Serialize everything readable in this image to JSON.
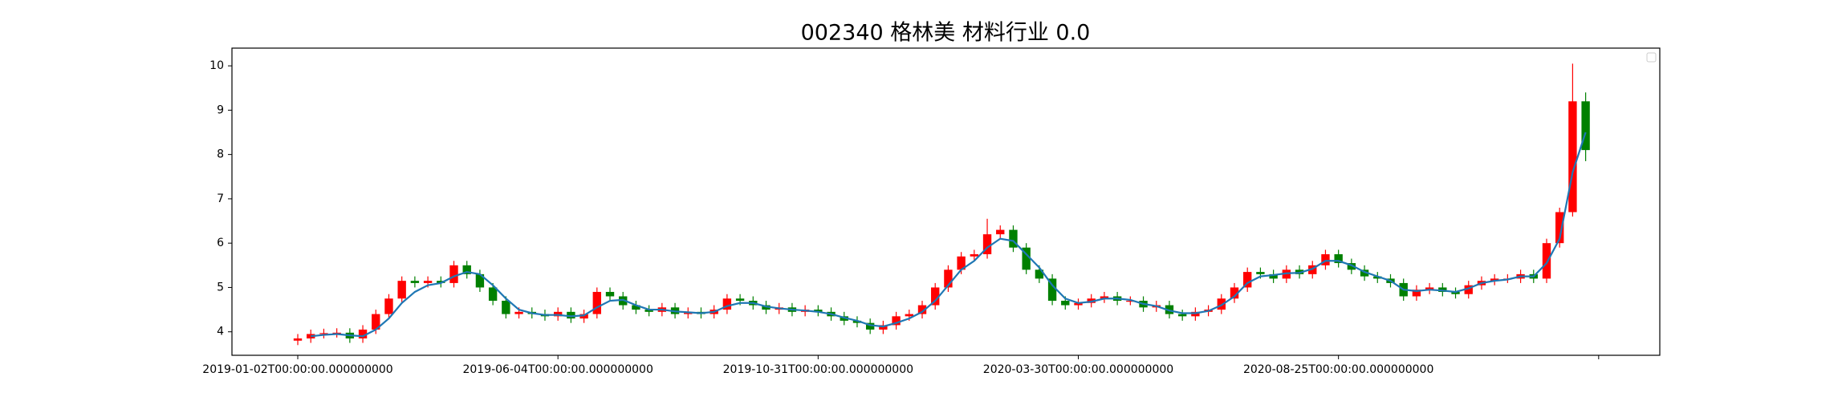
{
  "chart_data": {
    "type": "candlestick",
    "title": "002340 格林美 材料行业 0.0",
    "x": [
      0,
      5,
      10,
      15,
      20,
      25,
      30,
      35,
      40,
      45,
      50,
      55,
      60,
      65,
      70,
      75,
      80,
      85,
      90,
      95,
      100,
      105,
      110,
      115,
      120,
      125,
      130,
      135,
      140,
      145,
      150,
      155,
      160,
      165,
      170,
      175,
      180,
      185,
      190,
      195,
      200,
      205,
      210,
      215,
      220,
      225,
      230,
      235,
      240,
      245,
      250,
      255,
      260,
      265,
      270,
      275,
      280,
      285,
      290,
      295,
      300,
      305,
      310,
      315,
      320,
      325,
      330,
      335,
      340,
      345,
      350,
      355,
      360,
      365,
      370,
      375,
      380,
      385,
      390,
      395,
      400,
      405,
      410,
      415,
      420,
      425,
      430,
      435,
      440,
      445,
      450,
      455,
      460,
      465,
      470,
      475,
      480,
      485,
      490,
      495
    ],
    "opens": [
      3.8,
      3.85,
      3.95,
      3.97,
      3.98,
      3.85,
      4.05,
      4.4,
      4.75,
      5.15,
      5.1,
      5.15,
      5.1,
      5.5,
      5.3,
      5.0,
      4.7,
      4.4,
      4.45,
      4.4,
      4.35,
      4.45,
      4.3,
      4.4,
      4.9,
      4.8,
      4.6,
      4.5,
      4.45,
      4.55,
      4.4,
      4.45,
      4.4,
      4.5,
      4.75,
      4.7,
      4.6,
      4.5,
      4.55,
      4.45,
      4.5,
      4.45,
      4.35,
      4.25,
      4.2,
      4.05,
      4.15,
      4.35,
      4.4,
      4.6,
      5.0,
      5.4,
      5.7,
      5.75,
      6.2,
      6.3,
      5.9,
      5.4,
      5.2,
      4.7,
      4.6,
      4.65,
      4.75,
      4.8,
      4.7,
      4.7,
      4.55,
      4.6,
      4.4,
      4.35,
      4.45,
      4.5,
      4.75,
      5.0,
      5.35,
      5.3,
      5.2,
      5.4,
      5.3,
      5.5,
      5.75,
      5.55,
      5.4,
      5.25,
      5.2,
      5.1,
      4.8,
      4.95,
      5.0,
      4.9,
      4.85,
      5.05,
      5.15,
      5.2,
      5.2,
      5.3,
      5.2,
      6.0,
      6.7,
      9.2
    ],
    "highs": [
      3.95,
      4.05,
      4.07,
      4.08,
      4.08,
      4.15,
      4.5,
      4.85,
      5.25,
      5.25,
      5.25,
      5.25,
      5.6,
      5.6,
      5.4,
      5.1,
      4.8,
      4.55,
      4.55,
      4.5,
      4.55,
      4.55,
      4.5,
      5.0,
      5.0,
      4.9,
      4.7,
      4.6,
      4.65,
      4.65,
      4.55,
      4.55,
      4.6,
      4.85,
      4.85,
      4.8,
      4.7,
      4.65,
      4.65,
      4.6,
      4.6,
      4.55,
      4.45,
      4.35,
      4.3,
      4.25,
      4.45,
      4.5,
      4.7,
      5.1,
      5.5,
      5.8,
      5.85,
      6.55,
      6.4,
      6.4,
      6.0,
      5.5,
      5.3,
      4.8,
      4.75,
      4.85,
      4.9,
      4.9,
      4.8,
      4.8,
      4.7,
      4.7,
      4.5,
      4.55,
      4.6,
      4.85,
      5.1,
      5.45,
      5.45,
      5.4,
      5.5,
      5.5,
      5.6,
      5.85,
      5.85,
      5.65,
      5.5,
      5.35,
      5.3,
      5.2,
      5.05,
      5.1,
      5.1,
      5.0,
      5.15,
      5.25,
      5.3,
      5.3,
      5.4,
      5.4,
      6.1,
      6.8,
      10.05,
      9.4
    ],
    "lows": [
      3.7,
      3.75,
      3.85,
      3.87,
      3.75,
      3.75,
      3.95,
      4.3,
      4.65,
      5.0,
      5.0,
      5.0,
      5.0,
      5.2,
      4.9,
      4.6,
      4.3,
      4.3,
      4.3,
      4.25,
      4.25,
      4.2,
      4.2,
      4.3,
      4.7,
      4.5,
      4.4,
      4.35,
      4.35,
      4.3,
      4.3,
      4.3,
      4.3,
      4.4,
      4.6,
      4.5,
      4.4,
      4.4,
      4.35,
      4.35,
      4.35,
      4.25,
      4.15,
      4.1,
      3.95,
      3.95,
      4.05,
      4.25,
      4.3,
      4.5,
      4.9,
      5.3,
      5.6,
      5.65,
      6.1,
      5.8,
      5.3,
      5.1,
      4.6,
      4.5,
      4.5,
      4.55,
      4.65,
      4.6,
      4.6,
      4.45,
      4.45,
      4.3,
      4.25,
      4.25,
      4.35,
      4.4,
      4.65,
      4.9,
      5.2,
      5.1,
      5.1,
      5.2,
      5.2,
      5.4,
      5.45,
      5.3,
      5.15,
      5.1,
      5.0,
      4.7,
      4.7,
      4.85,
      4.8,
      4.75,
      4.75,
      4.95,
      5.05,
      5.1,
      5.1,
      5.1,
      5.1,
      5.9,
      6.6,
      7.85
    ],
    "closes": [
      3.85,
      3.95,
      3.97,
      3.98,
      3.85,
      4.05,
      4.4,
      4.75,
      5.15,
      5.1,
      5.15,
      5.1,
      5.5,
      5.3,
      5.0,
      4.7,
      4.4,
      4.45,
      4.4,
      4.35,
      4.45,
      4.3,
      4.4,
      4.9,
      4.8,
      4.6,
      4.5,
      4.45,
      4.55,
      4.4,
      4.45,
      4.4,
      4.5,
      4.75,
      4.7,
      4.6,
      4.5,
      4.55,
      4.45,
      4.5,
      4.45,
      4.35,
      4.25,
      4.2,
      4.05,
      4.15,
      4.35,
      4.4,
      4.6,
      5.0,
      5.4,
      5.7,
      5.75,
      6.2,
      6.3,
      5.9,
      5.4,
      5.2,
      4.7,
      4.6,
      4.65,
      4.75,
      4.8,
      4.7,
      4.7,
      4.55,
      4.6,
      4.4,
      4.35,
      4.45,
      4.5,
      4.75,
      5.0,
      5.35,
      5.3,
      5.2,
      5.4,
      5.3,
      5.5,
      5.75,
      5.55,
      5.4,
      5.25,
      5.2,
      5.1,
      4.8,
      4.95,
      5.0,
      4.9,
      4.85,
      5.05,
      5.15,
      5.2,
      5.2,
      5.3,
      5.2,
      6.0,
      6.7,
      9.2,
      8.1
    ],
    "ma": {
      "color": "#1f77b4",
      "values": [
        null,
        3.9,
        3.93,
        3.95,
        3.92,
        3.9,
        4.05,
        4.3,
        4.65,
        4.9,
        5.05,
        5.1,
        5.25,
        5.35,
        5.3,
        5.05,
        4.75,
        4.5,
        4.42,
        4.38,
        4.38,
        4.35,
        4.37,
        4.55,
        4.7,
        4.72,
        4.6,
        4.5,
        4.5,
        4.46,
        4.44,
        4.42,
        4.45,
        4.58,
        4.65,
        4.65,
        4.57,
        4.53,
        4.5,
        4.48,
        4.45,
        4.4,
        4.32,
        4.25,
        4.15,
        4.12,
        4.2,
        4.3,
        4.45,
        4.7,
        5.05,
        5.4,
        5.6,
        5.9,
        6.1,
        6.05,
        5.75,
        5.45,
        5.05,
        4.75,
        4.65,
        4.68,
        4.75,
        4.75,
        4.72,
        4.63,
        4.58,
        4.48,
        4.42,
        4.42,
        4.47,
        4.6,
        4.8,
        5.1,
        5.25,
        5.28,
        5.32,
        5.33,
        5.42,
        5.6,
        5.6,
        5.5,
        5.35,
        5.25,
        5.15,
        4.95,
        4.92,
        4.95,
        4.93,
        4.9,
        4.98,
        5.1,
        5.15,
        5.18,
        5.25,
        5.25,
        5.55,
        6.1,
        7.6,
        8.5
      ]
    },
    "up_color": "#ff0000",
    "down_color": "#008000",
    "xlim": [
      -25.3,
      523.5
    ],
    "xticks": [
      {
        "value": 0,
        "label": "2019-01-02T00:00:00.000000000"
      },
      {
        "value": 100,
        "label": "2019-06-04T00:00:00.000000000"
      },
      {
        "value": 200,
        "label": "2019-10-31T00:00:00.000000000"
      },
      {
        "value": 300,
        "label": "2020-03-30T00:00:00.000000000"
      },
      {
        "value": 400,
        "label": "2020-08-25T00:00:00.000000000"
      },
      {
        "value": 500,
        "label": null
      }
    ],
    "ylim": [
      3.47,
      10.4
    ],
    "yticks": [
      4,
      5,
      6,
      7,
      8,
      9,
      10
    ]
  }
}
